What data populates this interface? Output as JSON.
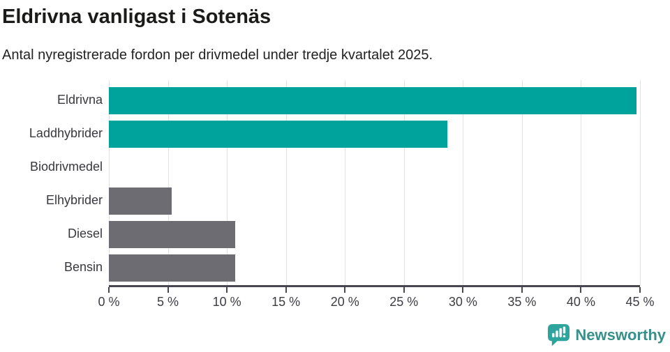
{
  "header": {
    "title": "Eldrivna vanligast i Sotenäs",
    "subtitle": "Antal nyregistrerade fordon per drivmedel under tredje kvartalet 2025."
  },
  "chart_data": {
    "type": "bar",
    "orientation": "horizontal",
    "title": "Eldrivna vanligast i Sotenäs",
    "subtitle": "Antal nyregistrerade fordon per drivmedel under tredje kvartalet 2025.",
    "categories": [
      "Eldrivna",
      "Laddhybrider",
      "Biodrivmedel",
      "Elhybrider",
      "Diesel",
      "Bensin"
    ],
    "values": [
      44.7,
      28.7,
      0,
      5.3,
      10.7,
      10.7
    ],
    "unit": "%",
    "xlim": [
      0,
      45
    ],
    "x_ticks": [
      {
        "value": 0,
        "label": "0 %"
      },
      {
        "value": 5,
        "label": "5 %"
      },
      {
        "value": 10,
        "label": "10 %"
      },
      {
        "value": 15,
        "label": "15 %"
      },
      {
        "value": 20,
        "label": "20 %"
      },
      {
        "value": 25,
        "label": "25 %"
      },
      {
        "value": 30,
        "label": "30 %"
      },
      {
        "value": 35,
        "label": "35 %"
      },
      {
        "value": 40,
        "label": "40 %"
      },
      {
        "value": 45,
        "label": "45 %"
      }
    ],
    "grid": true,
    "legend_position": "none",
    "highlight_color": "#00a39b",
    "default_color": "#6c6c72",
    "bar_colors": [
      "#00a39b",
      "#00a39b",
      "#6c6c72",
      "#6c6c72",
      "#6c6c72",
      "#6c6c72"
    ]
  },
  "footer": {
    "brand": "Newsworthy",
    "brand_text_color": "#37908a",
    "logo_color": "#2da59c"
  }
}
